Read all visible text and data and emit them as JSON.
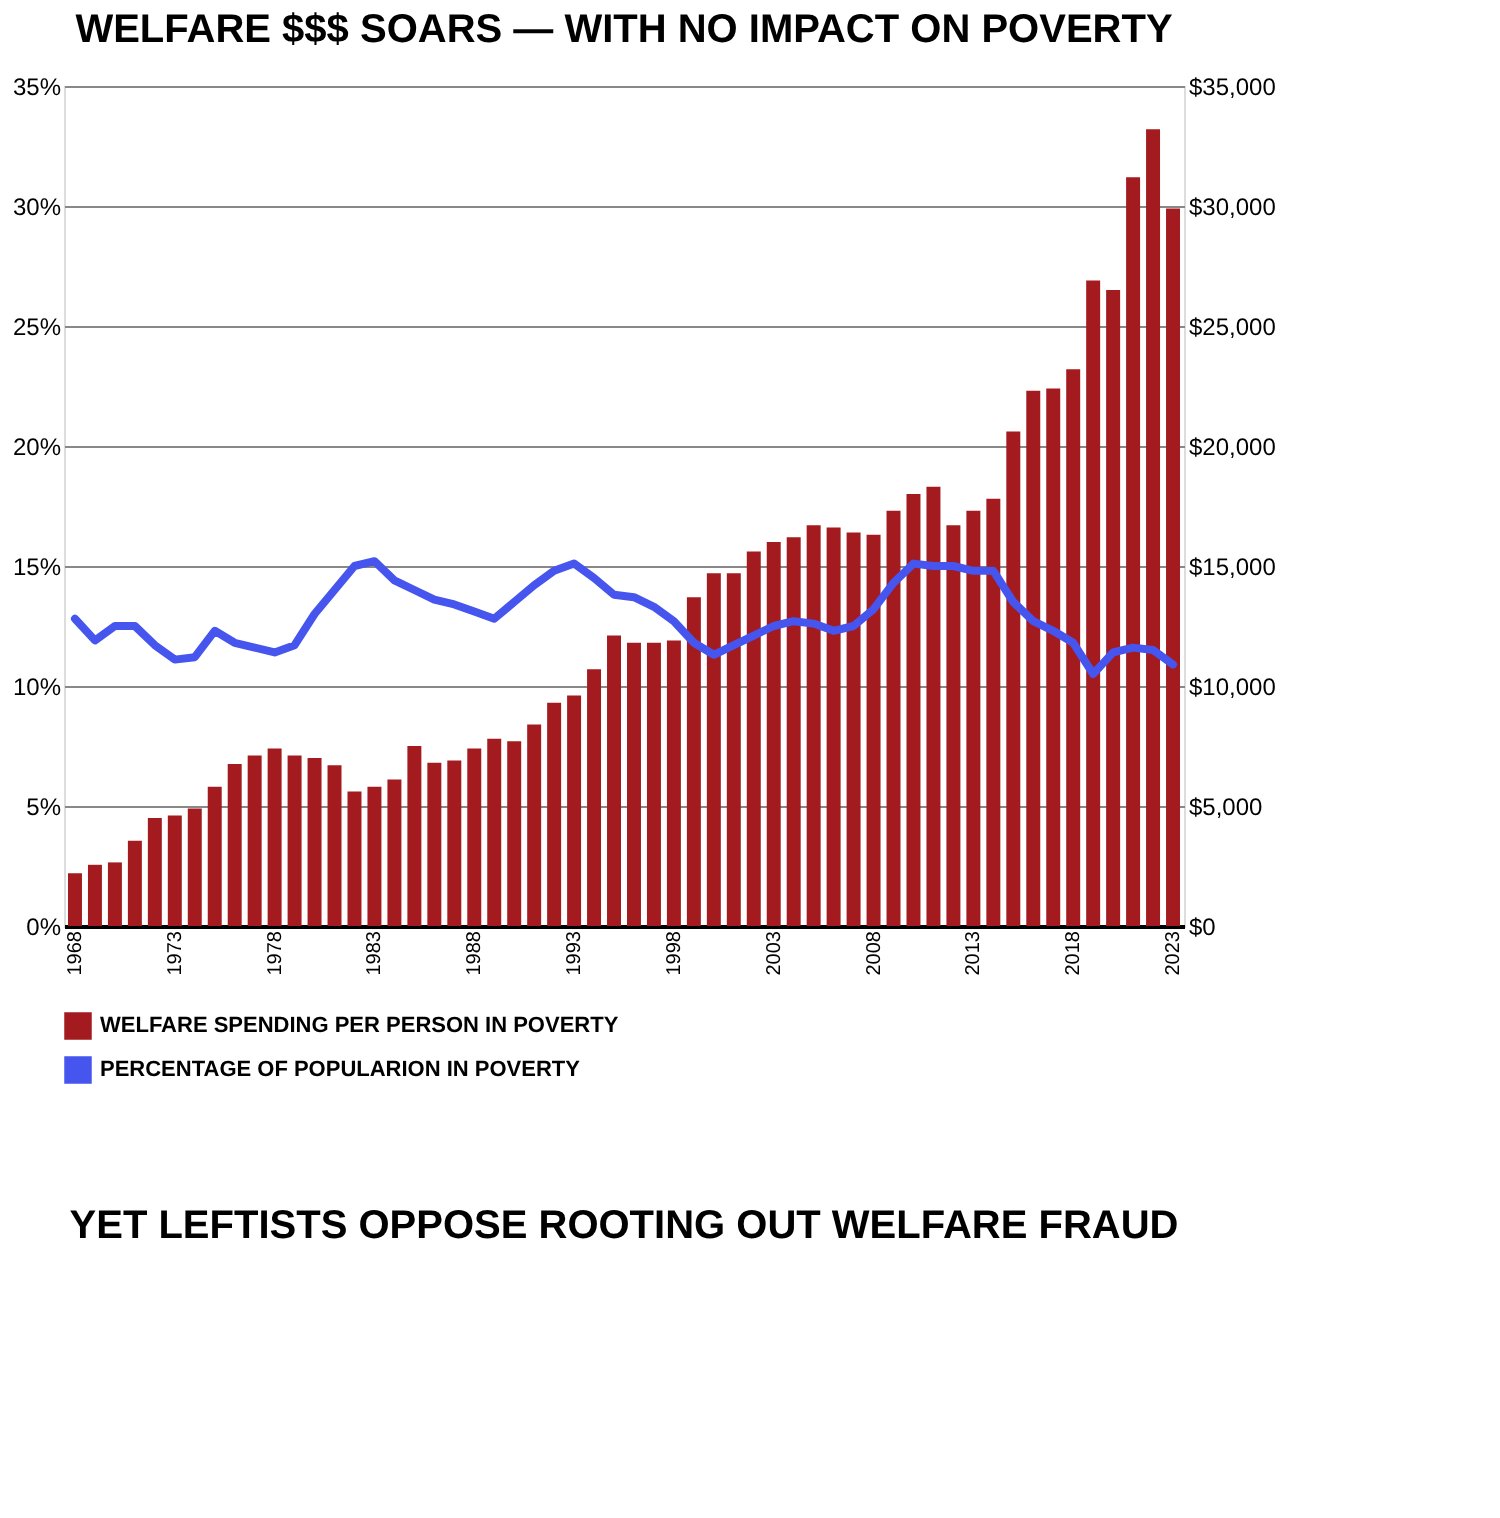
{
  "chart_data": {
    "type": "bar",
    "title": "WELFARE $$$ SOARS — WITH NO IMPACT ON POVERTY",
    "annotations": [
      "YET LEFTISTS OPPOSE ROOTING OUT WELFARE FRAUD"
    ],
    "categories": [
      "1968",
      null,
      null,
      null,
      null,
      "1973",
      null,
      null,
      null,
      null,
      "1978",
      null,
      null,
      null,
      null,
      "1983",
      null,
      null,
      null,
      null,
      "1988",
      null,
      null,
      null,
      null,
      "1993",
      null,
      null,
      null,
      null,
      "1998",
      null,
      null,
      null,
      null,
      "2003",
      null,
      null,
      null,
      null,
      "2008",
      null,
      null,
      null,
      null,
      "2013",
      null,
      null,
      null,
      null,
      "2018",
      null,
      null,
      null,
      null,
      "2023"
    ],
    "series": [
      {
        "name": "WELFARE SPENDING PER PERSON IN POVERTY",
        "axis": "y2",
        "color": "#a31b1f",
        "values": [
          2200,
          2550,
          2650,
          3550,
          4500,
          4600,
          4900,
          5800,
          6750,
          7100,
          7400,
          7100,
          7000,
          6700,
          5600,
          5800,
          6100,
          7500,
          6800,
          6900,
          7400,
          7800,
          7700,
          8400,
          9300,
          9600,
          10700,
          12100,
          11800,
          11800,
          11900,
          13700,
          14700,
          14700,
          15600,
          16000,
          16200,
          16700,
          16600,
          16400,
          16300,
          17300,
          18000,
          18300,
          16700,
          17300,
          17800,
          20600,
          22300,
          22400,
          23200,
          26900,
          26500,
          31200,
          33200,
          29900
        ]
      },
      {
        "name": "PERCENTAGE OF POPULARION IN POVERTY",
        "type": "line",
        "color": "#4655ee",
        "values": [
          12.8,
          11.9,
          12.5,
          12.5,
          11.7,
          11.1,
          11.2,
          12.3,
          11.8,
          11.6,
          11.4,
          11.7,
          13.0,
          14.0,
          15.0,
          15.2,
          14.4,
          14.0,
          13.6,
          13.4,
          13.1,
          12.8,
          13.5,
          14.2,
          14.8,
          15.1,
          14.5,
          13.8,
          13.7,
          13.3,
          12.7,
          11.8,
          11.3,
          11.7,
          12.1,
          12.5,
          12.7,
          12.6,
          12.3,
          12.5,
          13.2,
          14.3,
          15.1,
          15.0,
          15.0,
          14.8,
          14.8,
          13.5,
          12.7,
          12.3,
          11.8,
          10.5,
          11.4,
          11.6,
          11.5,
          10.9
        ]
      }
    ],
    "ylim": [
      0,
      35
    ],
    "yticks": [
      {
        "value": 0,
        "label": "0%"
      },
      {
        "value": 5,
        "label": "5%"
      },
      {
        "value": 10,
        "label": "10%"
      },
      {
        "value": 15,
        "label": "15%"
      },
      {
        "value": 20,
        "label": "20%"
      },
      {
        "value": 25,
        "label": "25%"
      },
      {
        "value": 30,
        "label": "30%"
      },
      {
        "value": 35,
        "label": "35%"
      }
    ],
    "y2lim": [
      0,
      35000
    ],
    "y2ticks": [
      {
        "value": 0,
        "label": "$0"
      },
      {
        "value": 5000,
        "label": "$5,000"
      },
      {
        "value": 10000,
        "label": "$10,000"
      },
      {
        "value": 15000,
        "label": "$15,000"
      },
      {
        "value": 20000,
        "label": "$20,000"
      },
      {
        "value": 25000,
        "label": "$25,000"
      },
      {
        "value": 30000,
        "label": "$30,000"
      },
      {
        "value": 35000,
        "label": "$35,000"
      }
    ],
    "grid": "y",
    "legend": "bottom"
  }
}
